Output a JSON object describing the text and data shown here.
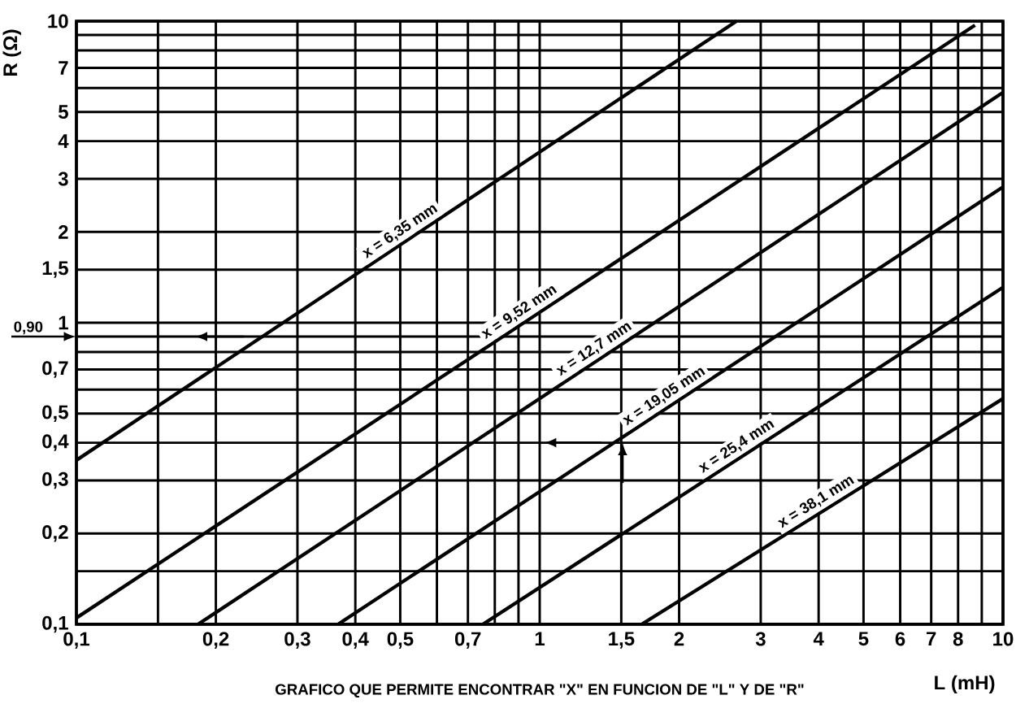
{
  "chart_data": {
    "type": "line",
    "title": "GRAFICO QUE PERMITE ENCONTRAR \"X\" EN FUNCION DE \"L\" Y DE \"R\"",
    "xlabel": "L (mH)",
    "ylabel": "R (Ω)",
    "log": "xy",
    "grid": true,
    "legend": false,
    "marker": "none",
    "line_style": "solid",
    "xlim": [
      0.1,
      10
    ],
    "ylim": [
      0.1,
      10
    ],
    "xticks": [
      {
        "value": 0.1,
        "label": "0,1"
      },
      {
        "value": 0.15,
        "label": null
      },
      {
        "value": 0.2,
        "label": "0,2"
      },
      {
        "value": 0.3,
        "label": "0,3"
      },
      {
        "value": 0.4,
        "label": "0,4"
      },
      {
        "value": 0.5,
        "label": "0,5"
      },
      {
        "value": 0.6,
        "label": null
      },
      {
        "value": 0.7,
        "label": "0,7"
      },
      {
        "value": 0.8,
        "label": null
      },
      {
        "value": 0.9,
        "label": null
      },
      1,
      {
        "value": 1.5,
        "label": "1,5"
      },
      2,
      3,
      4,
      5,
      6,
      7,
      8,
      {
        "value": 9,
        "label": null
      },
      10
    ],
    "yticks": [
      {
        "value": 0.1,
        "label": "0,1"
      },
      {
        "value": 0.15,
        "label": null
      },
      {
        "value": 0.2,
        "label": "0,2"
      },
      {
        "value": 0.3,
        "label": "0,3"
      },
      {
        "value": 0.4,
        "label": "0,4"
      },
      {
        "value": 0.5,
        "label": "0,5"
      },
      {
        "value": 0.6,
        "label": null
      },
      {
        "value": 0.7,
        "label": "0,7"
      },
      {
        "value": 0.8,
        "label": null
      },
      {
        "value": 0.9,
        "label": null
      },
      1,
      {
        "value": 1.5,
        "label": "1,5"
      },
      2,
      3,
      4,
      5,
      {
        "value": 6,
        "label": null
      },
      7,
      {
        "value": 8,
        "label": null
      },
      {
        "value": 9,
        "label": null
      },
      10
    ],
    "series": [
      {
        "name": "x = 6,35 mm",
        "color": "#000000",
        "x": [
          0.1,
          2.66
        ],
        "values": [
          0.35,
          10
        ]
      },
      {
        "name": "x = 9,52 mm",
        "color": "#000000",
        "x": [
          0.1,
          8.7
        ],
        "values": [
          0.105,
          9.7
        ]
      },
      {
        "name": "x = 12,7 mm",
        "color": "#000000",
        "x": [
          0.183,
          10
        ],
        "values": [
          0.1,
          5.8
        ]
      },
      {
        "name": "x = 19,05 mm",
        "color": "#000000",
        "x": [
          0.367,
          10
        ],
        "values": [
          0.1,
          2.82
        ]
      },
      {
        "name": "x = 25,4 mm",
        "color": "#000000",
        "x": [
          0.754,
          10
        ],
        "values": [
          0.1,
          1.31
        ]
      },
      {
        "name": "x = 38,1 mm",
        "color": "#000000",
        "x": [
          1.66,
          10
        ],
        "values": [
          0.1,
          0.56
        ]
      }
    ],
    "annotations": [
      "0,90"
    ]
  }
}
